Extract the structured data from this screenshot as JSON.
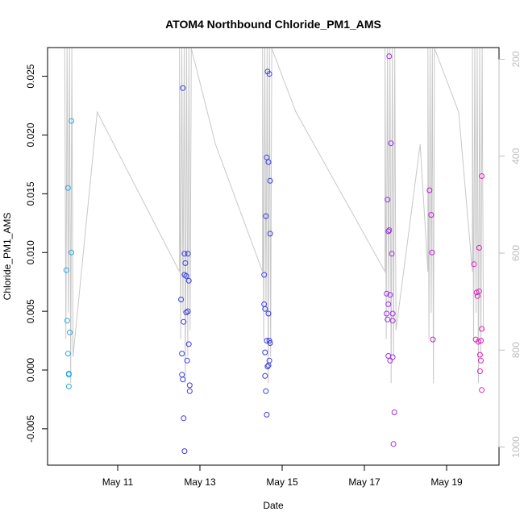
{
  "chart_data": {
    "type": "scatter",
    "title": "ATOM4 Northbound Chloride_PM1_AMS",
    "xlabel": "Date",
    "ylabel": "Chloride_PM1_AMS",
    "x_ticks": [
      "May 11",
      "May 13",
      "May 15",
      "May 17",
      "May 19"
    ],
    "y_ticks": [
      "-0.005",
      "0.000",
      "0.005",
      "0.010",
      "0.015",
      "0.020",
      "0.025"
    ],
    "y2_ticks": [
      "200",
      "400",
      "600",
      "800",
      "1000"
    ],
    "y2_reversed": true,
    "grid": false,
    "colors": {
      "line": "#c8c8c8",
      "right_axis": "#bdbdbd"
    },
    "series": [
      {
        "color": "#29a8e6",
        "points": [
          [
            "May 9 18:00",
            0.0085
          ],
          [
            "May 9 18:30",
            0.0042
          ],
          [
            "May 9 19:00",
            0.0155
          ],
          [
            "May 9 19:00",
            0.0014
          ],
          [
            "May 9 19:30",
            -0.0003
          ],
          [
            "May 9 19:30",
            -0.0004
          ],
          [
            "May 9 19:30",
            -0.0014
          ],
          [
            "May 9 20:00",
            0.0032
          ],
          [
            "May 9 21:00",
            0.0212
          ],
          [
            "May 9 21:00",
            0.01
          ]
        ]
      },
      {
        "color": "#3a3ae0",
        "points": [
          [
            "May 12 13:00",
            0.006
          ],
          [
            "May 12 13:30",
            0.0014
          ],
          [
            "May 12 13:30",
            -0.0004
          ],
          [
            "May 12 14:00",
            -0.0008
          ],
          [
            "May 12 14:00",
            0.024
          ],
          [
            "May 12 14:30",
            0.0041
          ],
          [
            "May 12 14:30",
            -0.0041
          ],
          [
            "May 12 15:00",
            0.0099
          ],
          [
            "May 12 15:00",
            0.0081
          ],
          [
            "May 12 15:00",
            -0.0069
          ],
          [
            "May 12 15:30",
            0.0091
          ],
          [
            "May 12 16:00",
            0.0049
          ],
          [
            "May 12 16:00",
            0.008
          ],
          [
            "May 12 16:30",
            0.0008
          ],
          [
            "May 12 17:00",
            0.005
          ],
          [
            "May 12 17:00",
            0.0099
          ],
          [
            "May 12 17:30",
            0.0022
          ],
          [
            "May 12 17:30",
            0.0076
          ],
          [
            "May 12 18:00",
            -0.0018
          ],
          [
            "May 12 18:00",
            -0.0013
          ],
          [
            "May 14 13:30",
            0.0081
          ],
          [
            "May 14 13:30",
            0.0056
          ],
          [
            "May 14 14:00",
            0.0052
          ],
          [
            "May 14 14:00",
            0.0015
          ],
          [
            "May 14 14:00",
            -0.0005
          ],
          [
            "May 14 14:30",
            0.0131
          ],
          [
            "May 14 14:30",
            -0.0018
          ],
          [
            "May 14 15:00",
            0.0181
          ],
          [
            "May 14 15:00",
            -0.0038
          ],
          [
            "May 14 15:00",
            0.0025
          ],
          [
            "May 14 15:30",
            0.0254
          ],
          [
            "May 14 15:30",
            0.0003
          ],
          [
            "May 14 16:00",
            0.0004
          ],
          [
            "May 14 16:00",
            0.0177
          ],
          [
            "May 14 16:00",
            0.0048
          ],
          [
            "May 14 16:30",
            0.0252
          ],
          [
            "May 14 16:30",
            0.0008
          ],
          [
            "May 14 16:30",
            0.0025
          ],
          [
            "May 14 17:00",
            0.0161
          ],
          [
            "May 14 17:00",
            0.0116
          ],
          [
            "May 14 17:00",
            0.0023
          ]
        ]
      },
      {
        "color": "#9b2fe0",
        "points": [
          [
            "May 17 13:00",
            0.0065
          ],
          [
            "May 17 13:00",
            0.0048
          ],
          [
            "May 17 13:30",
            0.0043
          ],
          [
            "May 17 13:30",
            0.0145
          ],
          [
            "May 17 14:00",
            0.0056
          ],
          [
            "May 17 14:00",
            0.0118
          ],
          [
            "May 17 14:00",
            0.0012
          ],
          [
            "May 17 14:30",
            0.0119
          ],
          [
            "May 17 14:30",
            0.0267
          ],
          [
            "May 17 15:00",
            0.0008
          ],
          [
            "May 17 15:00",
            0.0064
          ],
          [
            "May 17 15:30",
            0.0193
          ],
          [
            "May 17 16:00",
            0.0099
          ],
          [
            "May 17 16:30",
            0.0048
          ],
          [
            "May 17 16:30",
            0.0042
          ],
          [
            "May 17 16:30",
            0.0011
          ],
          [
            "May 17 17:30",
            -0.0036
          ],
          [
            "May 17 17:00",
            -0.0063
          ]
        ]
      },
      {
        "color": "#c020d0",
        "points": [
          [
            "May 18 14:00",
            0.0153
          ],
          [
            "May 18 15:00",
            0.0132
          ],
          [
            "May 18 15:30",
            0.01
          ],
          [
            "May 18 16:00",
            0.0026
          ]
        ]
      },
      {
        "color": "#e020c0",
        "points": [
          [
            "May 19 16:00",
            0.009
          ],
          [
            "May 19 17:00",
            0.0026
          ],
          [
            "May 19 17:30",
            0.0066
          ],
          [
            "May 19 18:00",
            0.0063
          ],
          [
            "May 19 18:30",
            0.0024
          ],
          [
            "May 19 19:00",
            0.0104
          ],
          [
            "May 19 19:00",
            0.0067
          ],
          [
            "May 19 19:30",
            0.0013
          ],
          [
            "May 19 19:30",
            -0.0001
          ],
          [
            "May 19 20:00",
            0.0008
          ],
          [
            "May 19 20:00",
            0.0025
          ],
          [
            "May 19 20:30",
            0.0165
          ],
          [
            "May 19 20:30",
            0.0035
          ],
          [
            "May 19 20:30",
            -0.0017
          ]
        ]
      }
    ]
  }
}
